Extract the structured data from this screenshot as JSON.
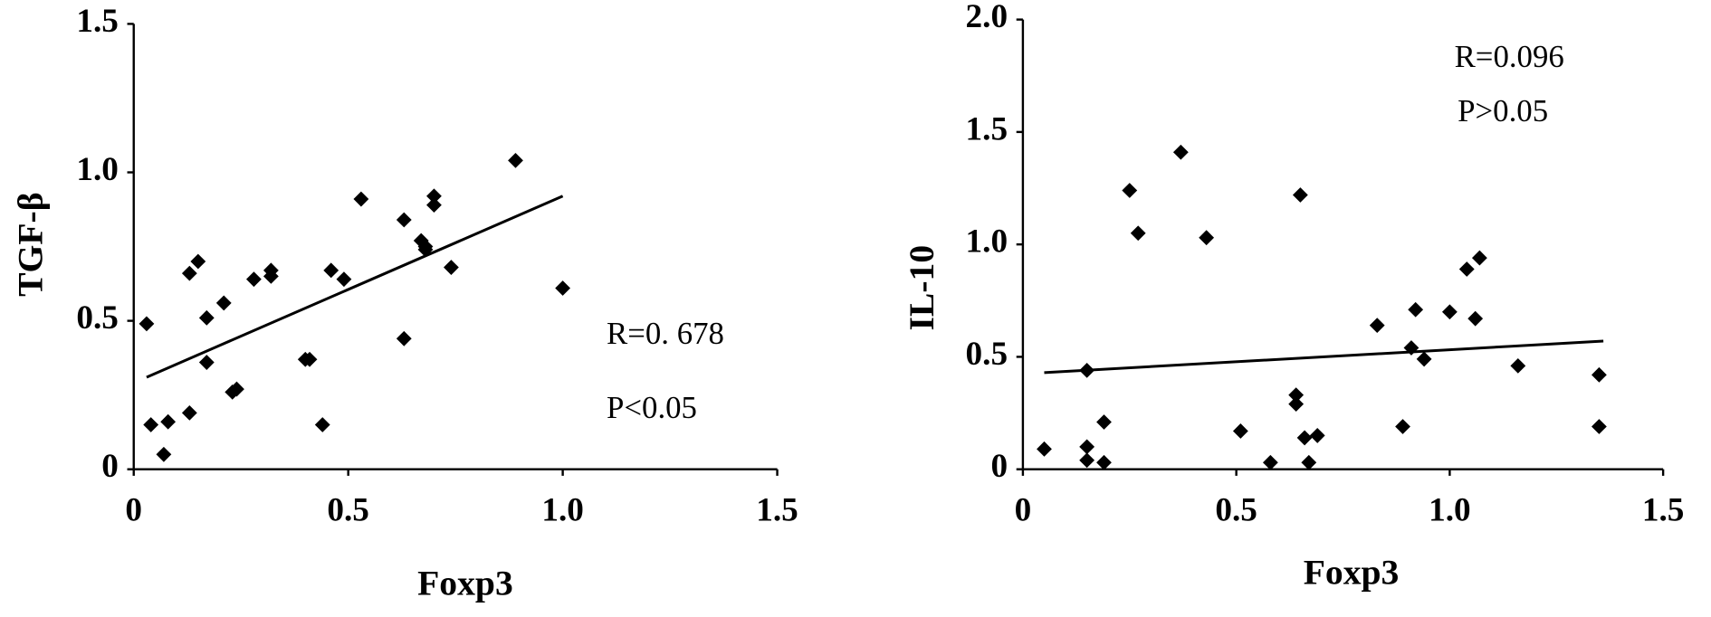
{
  "chart_data": [
    {
      "type": "scatter",
      "xlabel": "Foxp3",
      "ylabel": "TGF-β",
      "color": "#000000",
      "x": [
        0.03,
        0.04,
        0.08,
        0.07,
        0.13,
        0.13,
        0.15,
        0.17,
        0.17,
        0.21,
        0.23,
        0.24,
        0.28,
        0.32,
        0.32,
        0.4,
        0.41,
        0.44,
        0.46,
        0.49,
        0.53,
        0.63,
        0.63,
        0.67,
        0.68,
        0.68,
        0.7,
        0.7,
        0.74,
        0.89,
        1.0
      ],
      "values": [
        0.49,
        0.15,
        0.16,
        0.05,
        0.19,
        0.66,
        0.7,
        0.51,
        0.36,
        0.56,
        0.26,
        0.27,
        0.64,
        0.67,
        0.65,
        0.37,
        0.37,
        0.15,
        0.67,
        0.64,
        0.91,
        0.44,
        0.84,
        0.77,
        0.75,
        0.74,
        0.89,
        0.92,
        0.68,
        1.04,
        0.61
      ],
      "trendline": {
        "x": [
          0.03,
          1.0
        ],
        "values": [
          0.31,
          0.92
        ]
      },
      "annotations": [
        "R=0. 678",
        "P<0.05"
      ],
      "xlim": [
        0,
        1.5
      ],
      "xticks": [
        0,
        0.5,
        {
          "value": 1,
          "label": "1.0"
        },
        1.5
      ],
      "ylim": [
        0,
        1.5
      ],
      "yticks": [
        0,
        0.5,
        {
          "value": 1,
          "label": "1.0"
        },
        1.5
      ]
    },
    {
      "type": "scatter",
      "xlabel": "Foxp3",
      "ylabel": "IL-10",
      "color": "#000000",
      "x": [
        0.05,
        0.15,
        0.15,
        0.15,
        0.19,
        0.19,
        0.25,
        0.27,
        0.37,
        0.43,
        0.51,
        0.58,
        0.64,
        0.64,
        0.65,
        0.66,
        0.67,
        0.69,
        0.83,
        0.89,
        0.91,
        0.92,
        0.94,
        1.0,
        1.04,
        1.06,
        1.07,
        1.16,
        1.35,
        1.35
      ],
      "values": [
        0.09,
        0.44,
        0.1,
        0.04,
        0.03,
        0.21,
        1.24,
        1.05,
        1.41,
        1.03,
        0.17,
        0.03,
        0.33,
        0.29,
        1.22,
        0.14,
        0.03,
        0.15,
        0.64,
        0.19,
        0.54,
        0.71,
        0.49,
        0.7,
        0.89,
        0.67,
        0.94,
        0.46,
        0.42,
        0.19
      ],
      "trendline": {
        "x": [
          0.05,
          1.36
        ],
        "values": [
          0.43,
          0.57
        ]
      },
      "annotations": [
        "R=0.096",
        "P>0.05"
      ],
      "xlim": [
        0,
        1.5
      ],
      "xticks": [
        0,
        0.5,
        {
          "value": 1,
          "label": "1.0"
        },
        1.5
      ],
      "ylim": [
        0,
        2
      ],
      "yticks": [
        0,
        0.5,
        {
          "value": 1,
          "label": "1.0"
        },
        1.5,
        {
          "value": 2,
          "label": "2.0"
        }
      ]
    }
  ]
}
